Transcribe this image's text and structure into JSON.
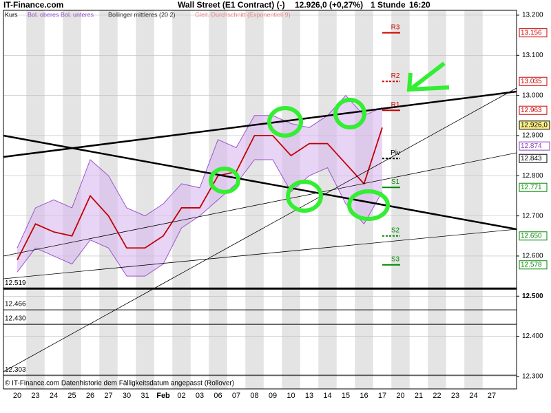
{
  "header": "IT-Finance.com",
  "chart_data": {
    "type": "line",
    "title": "Wall Street (E1 Contract) (-)",
    "subtitle": "12.926,0 (+0,27%)",
    "interval": "1 Stunde",
    "time": "16:20",
    "legend_labels": [
      "Kurs",
      "Bol. oberes Bol. unteres",
      "Bollinger mittleres (20 2)",
      "Gleit. Durchschnitt (Exponentiell 9)"
    ],
    "footer": "© IT-Finance.com Datenhistorie dem Fälligkeitsdatum angepasst (Rollover)",
    "categories": [
      "20",
      "23",
      "24",
      "25",
      "26",
      "27",
      "30",
      "31",
      "Feb",
      "02",
      "03",
      "06",
      "07",
      "08",
      "09",
      "10",
      "13",
      "14",
      "15",
      "16",
      "17",
      "20",
      "21",
      "22",
      "23",
      "24",
      "27"
    ],
    "series": [
      {
        "name": "Kurs",
        "color": "#c00000",
        "values": [
          12.59,
          12.68,
          12.66,
          12.65,
          12.75,
          12.7,
          12.62,
          12.62,
          12.65,
          12.72,
          12.72,
          12.8,
          12.81,
          12.9,
          12.9,
          12.85,
          12.88,
          12.88,
          12.83,
          12.78,
          12.92,
          null,
          null,
          null,
          null,
          null,
          null
        ]
      },
      {
        "name": "Bol. oberes",
        "color": "#9955cc",
        "values": [
          12.62,
          12.72,
          12.74,
          12.72,
          12.84,
          12.8,
          12.72,
          12.7,
          12.73,
          12.78,
          12.77,
          12.89,
          12.87,
          12.95,
          12.95,
          12.93,
          12.92,
          12.95,
          13.0,
          12.95,
          12.97,
          null,
          null,
          null,
          null,
          null,
          null
        ]
      },
      {
        "name": "Bol. unteres",
        "color": "#9955cc",
        "values": [
          12.56,
          12.62,
          12.6,
          12.58,
          12.64,
          12.62,
          12.55,
          12.55,
          12.58,
          12.67,
          12.7,
          12.74,
          12.78,
          12.84,
          12.84,
          12.76,
          12.8,
          12.82,
          12.73,
          12.68,
          12.76,
          null,
          null,
          null,
          null,
          null,
          null
        ]
      }
    ],
    "ylim": [
      12.269,
      13.212
    ],
    "yticks": [
      {
        "value": 13.2,
        "label": "13.200"
      },
      {
        "value": 13.1,
        "label": "13.100"
      },
      {
        "value": 13.0,
        "label": "13.000"
      },
      {
        "value": 12.9,
        "label": "12.900"
      },
      {
        "value": 12.8,
        "label": "12.800"
      },
      {
        "value": 12.7,
        "label": "12.700"
      },
      {
        "value": 12.6,
        "label": "12.600"
      },
      {
        "value": 12.5,
        "label": "12.500"
      },
      {
        "value": 12.4,
        "label": "12.400"
      },
      {
        "value": 12.3,
        "label": "12.300"
      }
    ],
    "levels": [
      {
        "name": "R3",
        "value": 13.156,
        "label": "13.156",
        "color": "#cc0000",
        "dashed": false
      },
      {
        "name": "R2",
        "value": 13.035,
        "label": "13.035",
        "color": "#cc0000",
        "dashed": true
      },
      {
        "name": "R1",
        "value": 12.963,
        "label": "12.963",
        "color": "#cc0000",
        "dashed": false
      },
      {
        "name": "Piv",
        "value": 12.843,
        "label": "12.843",
        "color": "#000000",
        "dashed": true
      },
      {
        "name": "S1",
        "value": 12.771,
        "label": "12.771",
        "color": "#008800",
        "dashed": false
      },
      {
        "name": "S2",
        "value": 12.65,
        "label": "12.650",
        "color": "#008800",
        "dashed": true
      },
      {
        "name": "S3",
        "value": 12.578,
        "label": "12.578",
        "color": "#008800",
        "dashed": false
      }
    ],
    "markers": [
      {
        "value": 12.926,
        "label": "12.926,0",
        "color": "#000000",
        "fill": "#ffee88"
      },
      {
        "value": 12.874,
        "label": "12.874",
        "color": "#8844bb",
        "fill": "#ffffff"
      }
    ],
    "hlines": [
      {
        "value": 12.519,
        "label": "12.519",
        "width": 3
      },
      {
        "value": 12.466,
        "label": "12.466",
        "width": 1
      },
      {
        "value": 12.43,
        "label": "12.430",
        "width": 1
      },
      {
        "value": 12.303,
        "label": "12.303",
        "width": 1
      }
    ],
    "grid": true
  }
}
